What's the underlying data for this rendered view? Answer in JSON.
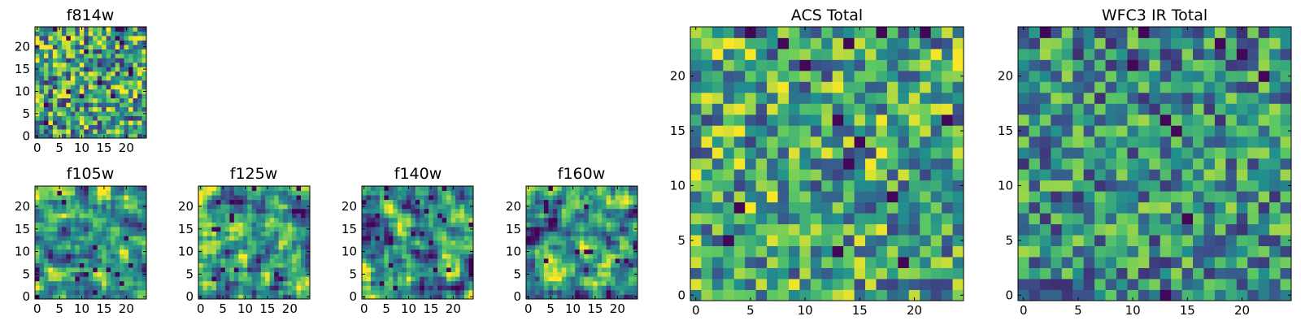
{
  "colors": {
    "colormap": [
      "#440154",
      "#3b528b",
      "#21908d",
      "#5dc963",
      "#fde725"
    ],
    "frame": "#000000"
  },
  "chart_data": [
    {
      "id": "f814w",
      "type": "heatmap",
      "title": "f814w",
      "grid": 25,
      "x_ticks": [
        "0",
        "5",
        "10",
        "15",
        "20"
      ],
      "y_ticks": [
        "0",
        "5",
        "10",
        "15",
        "20"
      ],
      "xlim": [
        -0.5,
        24.5
      ],
      "ylim": [
        -0.5,
        24.5
      ],
      "seed": 11,
      "smooth": 0,
      "bias": 0.58,
      "spread": 0.55,
      "dark": 0.035
    },
    {
      "id": "f105w",
      "type": "heatmap",
      "title": "f105w",
      "grid": 25,
      "x_ticks": [
        "0",
        "5",
        "10",
        "15",
        "20"
      ],
      "y_ticks": [
        "0",
        "5",
        "10",
        "15",
        "20"
      ],
      "xlim": [
        -0.5,
        24.5
      ],
      "ylim": [
        -0.5,
        24.5
      ],
      "seed": 23,
      "smooth": 1,
      "bias": 0.56,
      "spread": 0.6,
      "dark": 0.02
    },
    {
      "id": "f125w",
      "type": "heatmap",
      "title": "f125w",
      "grid": 25,
      "x_ticks": [
        "0",
        "5",
        "10",
        "15",
        "20"
      ],
      "y_ticks": [
        "0",
        "5",
        "10",
        "15",
        "20"
      ],
      "xlim": [
        -0.5,
        24.5
      ],
      "ylim": [
        -0.5,
        24.5
      ],
      "seed": 37,
      "smooth": 1,
      "bias": 0.55,
      "spread": 0.65,
      "dark": 0.025
    },
    {
      "id": "f140w",
      "type": "heatmap",
      "title": "f140w",
      "grid": 25,
      "x_ticks": [
        "0",
        "5",
        "10",
        "15",
        "20"
      ],
      "y_ticks": [
        "0",
        "5",
        "10",
        "15",
        "20"
      ],
      "xlim": [
        -0.5,
        24.5
      ],
      "ylim": [
        -0.5,
        24.5
      ],
      "seed": 51,
      "smooth": 1,
      "bias": 0.52,
      "spread": 0.65,
      "dark": 0.025
    },
    {
      "id": "f160w",
      "type": "heatmap",
      "title": "f160w",
      "grid": 25,
      "x_ticks": [
        "0",
        "5",
        "10",
        "15",
        "20"
      ],
      "y_ticks": [
        "0",
        "5",
        "10",
        "15",
        "20"
      ],
      "xlim": [
        -0.5,
        24.5
      ],
      "ylim": [
        -0.5,
        24.5
      ],
      "seed": 67,
      "smooth": 1,
      "bias": 0.56,
      "spread": 0.65,
      "dark": 0.02
    },
    {
      "id": "acs-total",
      "type": "heatmap",
      "title": "ACS Total",
      "grid": 25,
      "x_ticks": [
        "0",
        "5",
        "10",
        "15",
        "20"
      ],
      "y_ticks": [
        "0",
        "5",
        "10",
        "15",
        "20"
      ],
      "xlim": [
        -0.5,
        24.5
      ],
      "ylim": [
        -0.5,
        24.5
      ],
      "seed": 83,
      "smooth": 0,
      "bias": 0.6,
      "spread": 0.5,
      "dark": 0.03
    },
    {
      "id": "wfc3-ir-total",
      "type": "heatmap",
      "title": "WFC3 IR Total",
      "grid": 25,
      "x_ticks": [
        "0",
        "5",
        "10",
        "15",
        "20"
      ],
      "y_ticks": [
        "0",
        "5",
        "10",
        "15",
        "20"
      ],
      "xlim": [
        -0.5,
        24.5
      ],
      "ylim": [
        -0.5,
        24.5
      ],
      "seed": 97,
      "smooth": 0,
      "bias": 0.5,
      "spread": 0.45,
      "dark": 0.02
    }
  ]
}
